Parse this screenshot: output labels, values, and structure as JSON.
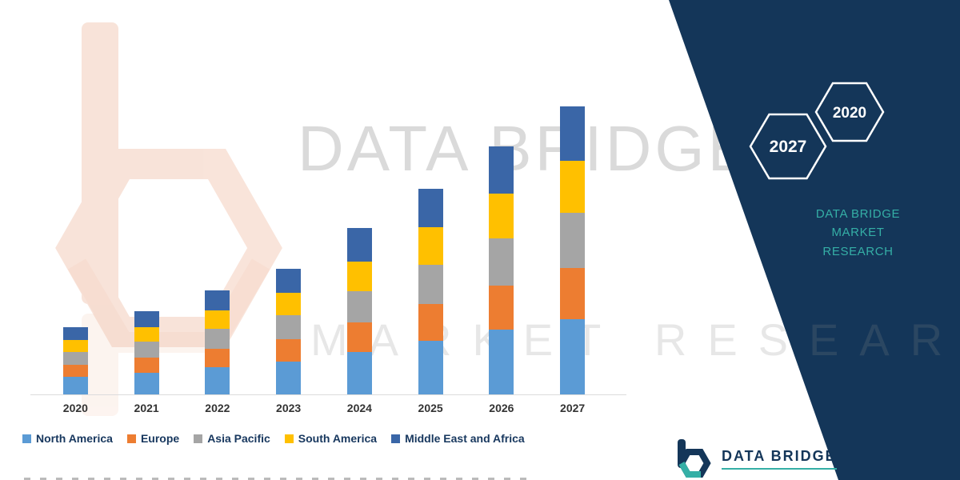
{
  "brand": {
    "hexagon_labels": [
      "2027",
      "2020"
    ],
    "caption": [
      "DATA BRIDGE MARKET",
      "RESEARCH"
    ],
    "footer_logo_text": "DATA BRIDGE",
    "watermark_primary": "DATA BRIDGE",
    "watermark_secondary": "MARKET RESEARCH"
  },
  "colors": {
    "panel_navy": "#143659",
    "teal_accent": "#35AFA6",
    "legend_text": "#17375E",
    "axis_label": "#333333",
    "watermark_peach": "#F3C9B5"
  },
  "chart_data": {
    "type": "bar",
    "stacked": true,
    "title": "",
    "xlabel": "",
    "ylabel": "",
    "grid": false,
    "legend_position": "bottom",
    "categories": [
      "2020",
      "2021",
      "2022",
      "2023",
      "2024",
      "2025",
      "2026",
      "2027"
    ],
    "series": [
      {
        "name": "North America",
        "color": "#5B9BD5",
        "values": [
          6.1,
          7.5,
          9.4,
          11.3,
          14.8,
          18.6,
          22.4,
          26.0
        ]
      },
      {
        "name": "Europe",
        "color": "#ED7D31",
        "values": [
          4.2,
          5.2,
          6.5,
          7.8,
          10.3,
          12.9,
          15.5,
          18.0
        ]
      },
      {
        "name": "Asia Pacific",
        "color": "#A5A5A5",
        "values": [
          4.4,
          5.5,
          6.8,
          8.3,
          10.8,
          13.6,
          16.3,
          19.0
        ]
      },
      {
        "name": "South America",
        "color": "#FFC000",
        "values": [
          4.2,
          5.2,
          6.5,
          7.8,
          10.3,
          12.9,
          15.5,
          18.0
        ]
      },
      {
        "name": "Middle East and Africa",
        "color": "#3A66A7",
        "values": [
          4.5,
          5.6,
          6.8,
          8.3,
          11.5,
          13.5,
          16.3,
          19.0
        ]
      }
    ],
    "totals": [
      23.4,
      29.0,
      36.0,
      43.5,
      57.7,
      71.5,
      86.0,
      100.0
    ],
    "ylim": [
      0,
      105
    ],
    "value_units": "relative index (no y-axis labels shown)"
  }
}
